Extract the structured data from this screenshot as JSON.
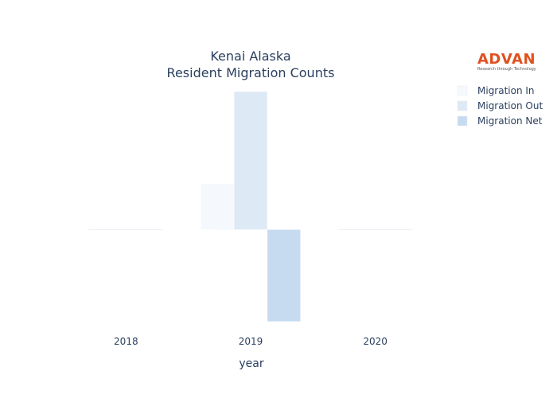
{
  "chart_data": {
    "type": "bar",
    "title_lines": [
      "Kenai Alaska",
      "Resident Migration Counts"
    ],
    "xlabel": "year",
    "ylabel": "",
    "categories": [
      "2018",
      "2019",
      "2020"
    ],
    "series": [
      {
        "name": "Migration In",
        "values": [
          0,
          50,
          0
        ],
        "color": "#f5f9fd"
      },
      {
        "name": "Migration Out",
        "values": [
          0,
          150,
          0
        ],
        "color": "#dde9f5"
      },
      {
        "name": "Migration Net",
        "values": [
          0,
          -100,
          0
        ],
        "color": "#c6dbef"
      }
    ],
    "ylim": [
      -100,
      150
    ],
    "grid": false,
    "y_ticks_shown": false,
    "zero_line_color": "#ebf0f8",
    "legend_position": "top-right"
  },
  "branding": {
    "logo_text": "ADVAN",
    "logo_tagline": "Research through Technology",
    "logo_color": "#e0501f"
  }
}
